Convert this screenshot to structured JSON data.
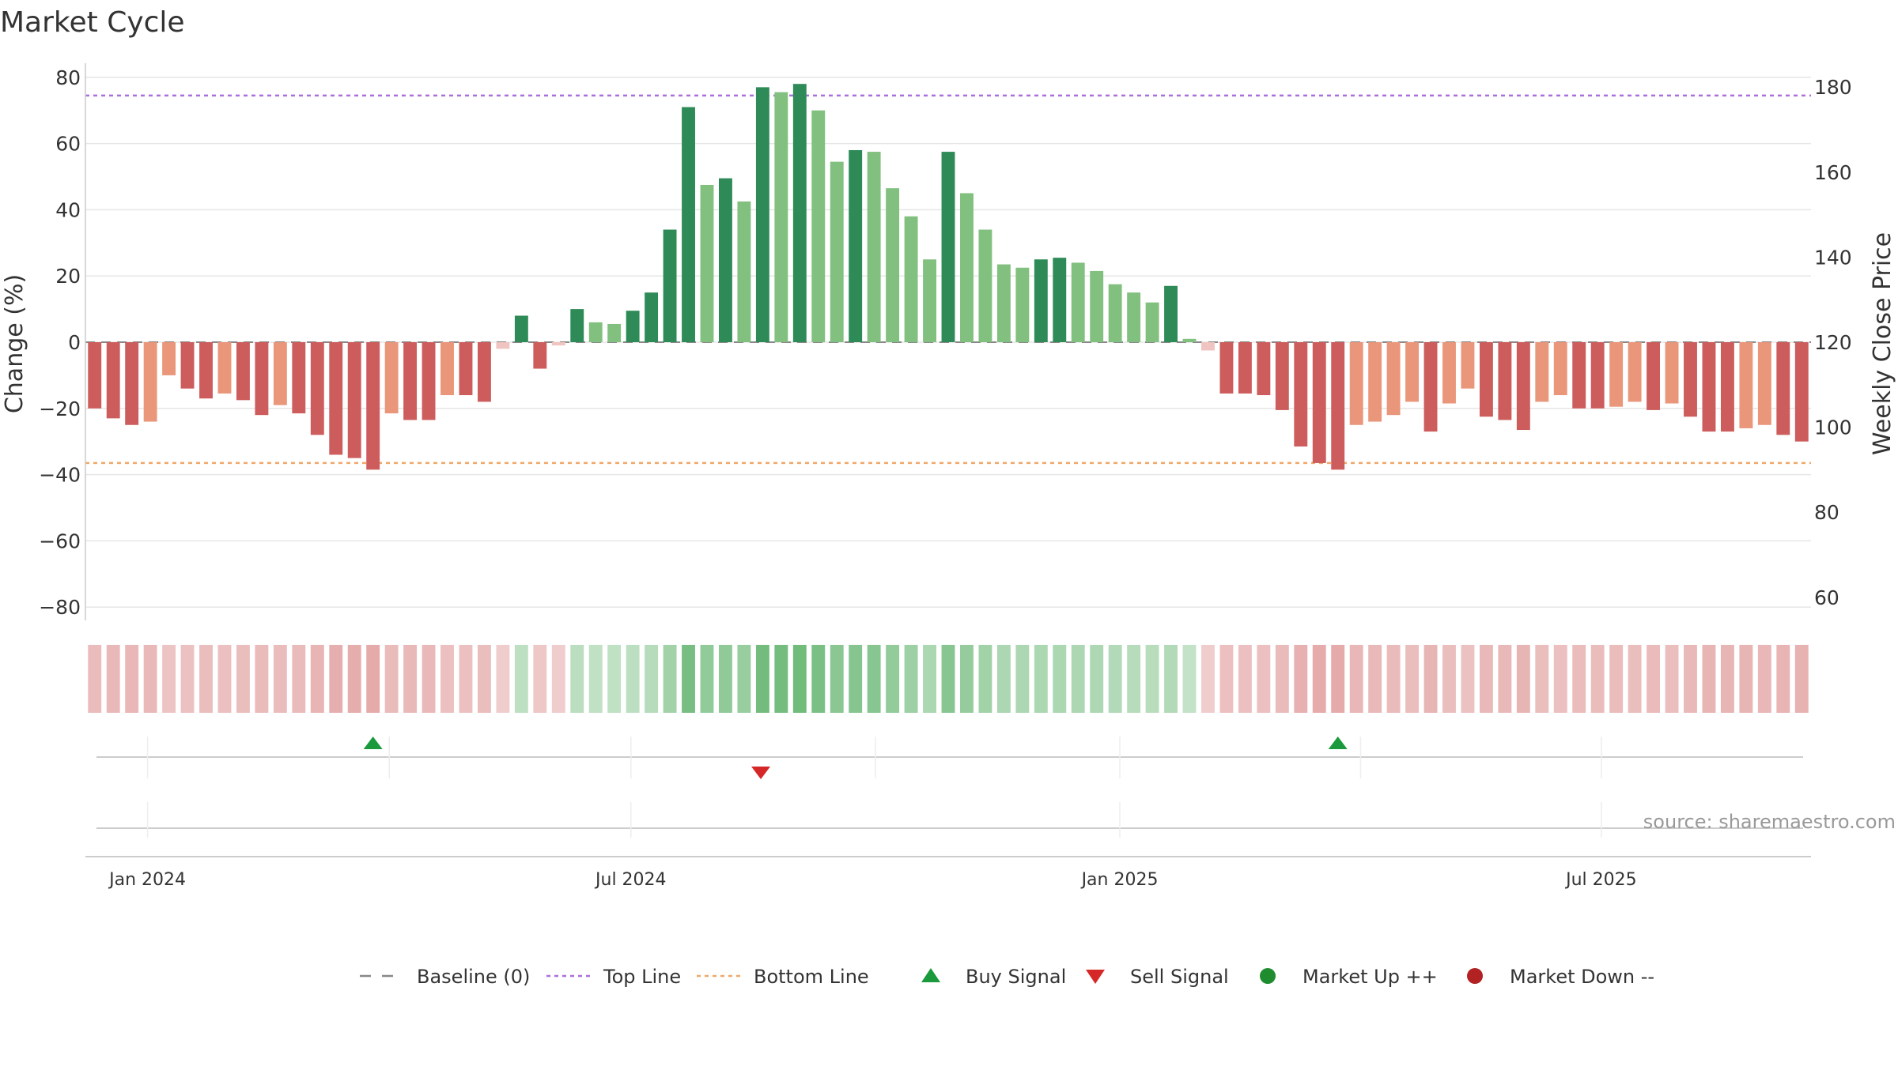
{
  "chart_data": {
    "type": "bar",
    "title": "Market Cycle",
    "ylabel": "Change (%)",
    "ylabel_right": "Weekly Close Price",
    "ylim": [
      -85,
      85
    ],
    "yticks": [
      80,
      60,
      40,
      20,
      0,
      -20,
      -40,
      -60,
      -80
    ],
    "yticks_right": [
      180,
      160,
      140,
      120,
      100,
      80,
      60
    ],
    "top_line": 74.5,
    "bottom_line": -36.5,
    "x_labels": [
      "Jan 2024",
      "Jul 2024",
      "Jan 2025",
      "Jul 2025"
    ],
    "x_label_positions": [
      3.35,
      29.4,
      55.75,
      81.7
    ],
    "values": [
      -20,
      -23,
      -25,
      -24,
      -10,
      -14,
      -17,
      -15.5,
      -17.5,
      -22,
      -19,
      -21.5,
      -28,
      -34,
      -35,
      -38.5,
      -21.5,
      -23.5,
      -23.5,
      -16,
      -16,
      -18,
      -2,
      8,
      -8,
      -1,
      10,
      6,
      5.5,
      9.5,
      15,
      34,
      71,
      47.5,
      49.5,
      42.5,
      77,
      75.5,
      78,
      70,
      54.5,
      58,
      57.5,
      46.5,
      38,
      25,
      57.5,
      45,
      34,
      23.5,
      22.5,
      25,
      25.5,
      24,
      21.5,
      17.5,
      15,
      12,
      17,
      1,
      -2.5,
      -15.5,
      -15.5,
      -16,
      -20.5,
      -31.5,
      -36.5,
      -38.5,
      -25,
      -24,
      -22,
      -18,
      -27,
      -18.5,
      -14,
      -22.5,
      -23.5,
      -26.5,
      -18,
      -16,
      -20,
      -20,
      -19.5,
      -18,
      -20.5,
      -18.5,
      -22.5,
      -27,
      -27,
      -26,
      -25,
      -28,
      -30
    ],
    "series": [
      {
        "name": "Baseline (0)",
        "value": 0,
        "color": "#888888"
      },
      {
        "name": "Top Line",
        "value": 74.5,
        "color": "#a96fdc"
      },
      {
        "name": "Bottom Line",
        "value": -36.5,
        "color": "#f0a868"
      }
    ],
    "signals": [
      {
        "type": "buy",
        "x": 15.5
      },
      {
        "type": "sell",
        "x": 36.4
      },
      {
        "type": "buy",
        "x": 67.5
      }
    ],
    "legend": [
      {
        "label": "Baseline (0)",
        "marker": "dash",
        "color": "#888888"
      },
      {
        "label": "Top Line",
        "marker": "dot-line",
        "color": "#a96fdc"
      },
      {
        "label": "Bottom Line",
        "marker": "dot-line",
        "color": "#f0a868"
      },
      {
        "label": "Buy Signal",
        "marker": "triangle-up",
        "color": "#1a9a3c"
      },
      {
        "label": "Sell Signal",
        "marker": "triangle-down",
        "color": "#d62728"
      },
      {
        "label": "Market Up ++",
        "marker": "circle",
        "color": "#1e8c2f"
      },
      {
        "label": "Market Down --",
        "marker": "circle",
        "color": "#b22222"
      }
    ],
    "legend_position": "bottom",
    "grid": true,
    "colors": {
      "strong_up": "#2e8b57",
      "up": "#82c07f",
      "strong_down": "#cd5c5c",
      "down": "#e9967a",
      "weak_down": "#f0c4c0",
      "strip_up_base": "#3fa34d",
      "strip_down_base": "#cd5c5c"
    },
    "source": "source: sharemaestro.com"
  }
}
